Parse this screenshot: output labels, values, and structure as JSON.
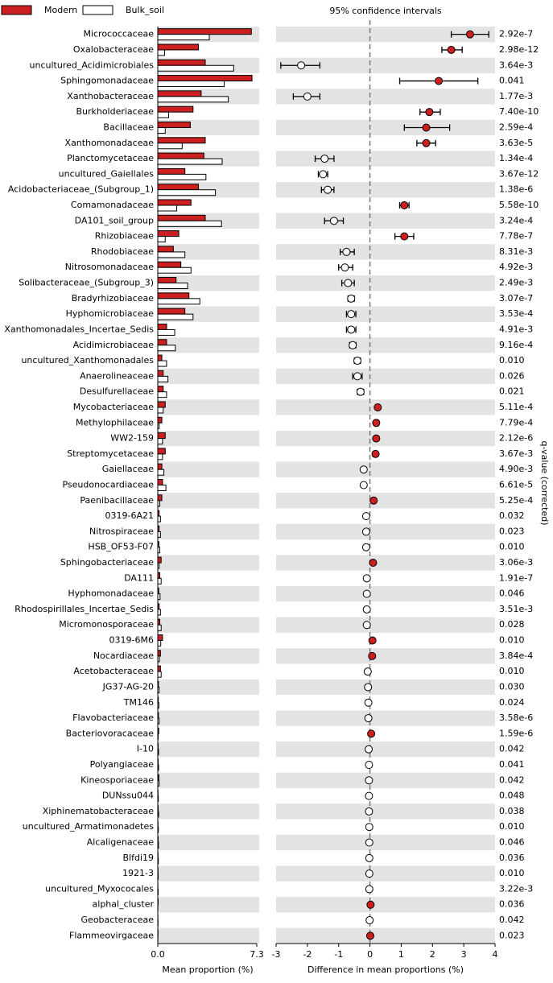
{
  "chart_data": {
    "type": "extended_error_bar",
    "title": "95% confidence intervals",
    "categories": [
      "Micrococcaceae",
      "Oxalobacteraceae",
      "uncultured_Acidimicrobiales",
      "Sphingomonadaceae",
      "Xanthobacteraceae",
      "Burkholderiaceae",
      "Bacillaceae",
      "Xanthomonadaceae",
      "Planctomycetaceae",
      "uncultured_Gaiellales",
      "Acidobacteriaceae_(Subgroup_1)",
      "Comamonadaceae",
      "DA101_soil_group",
      "Rhizobiaceae",
      "Rhodobiaceae",
      "Nitrosomonadaceae",
      "Solibacteraceae_(Subgroup_3)",
      "Bradyrhizobiaceae",
      "Hyphomicrobiaceae",
      "Xanthomonadales_Incertae_Sedis",
      "Acidimicrobiaceae",
      "uncultured_Xanthomonadales",
      "Anaerolineaceae",
      "Desulfurellaceae",
      "Mycobacteriaceae",
      "Methylophilaceae",
      "WW2-159",
      "Streptomycetaceae",
      "Gaiellaceae",
      "Pseudonocardiaceae",
      "Paenibacillaceae",
      "0319-6A21",
      "Nitrospiraceae",
      "HSB_OF53-F07",
      "Sphingobacteriaceae",
      "DA111",
      "Hyphomonadaceae",
      "Rhodospirillales_Incertae_Sedis",
      "Micromonosporaceae",
      "0319-6M6",
      "Nocardiaceae",
      "Acetobacteraceae",
      "JG37-AG-20",
      "TM146",
      "Flavobacteriaceae",
      "Bacteriovoracaceae",
      "I-10",
      "Polyangiaceae",
      "Kineosporiaceae",
      "DUNssu044",
      "Xiphinematobacteraceae",
      "uncultured_Armatimonadetes",
      "Alcaligenaceae",
      "Blfdi19",
      "1921-3",
      "uncultured_Myxococales",
      "alphal_cluster",
      "Geobacteraceae",
      "Flammeovirgaceae"
    ],
    "series": [
      {
        "name": "Modern",
        "color": "#cc1f1f",
        "values": [
          6.9,
          3.0,
          3.5,
          6.95,
          3.2,
          2.6,
          2.4,
          3.5,
          3.4,
          2.0,
          3.0,
          2.45,
          3.5,
          1.55,
          1.15,
          1.7,
          1.35,
          2.3,
          2.0,
          0.65,
          0.65,
          0.3,
          0.4,
          0.4,
          0.55,
          0.3,
          0.55,
          0.55,
          0.3,
          0.35,
          0.3,
          0.1,
          0.1,
          0.08,
          0.25,
          0.15,
          0.07,
          0.1,
          0.15,
          0.35,
          0.2,
          0.2,
          0.05,
          0.04,
          0.05,
          0.07,
          0.03,
          0.03,
          0.08,
          0.02,
          0.03,
          0.02,
          0.03,
          0.02,
          0.02,
          0.01,
          0.03,
          0.01,
          0.02
        ]
      },
      {
        "name": "Bulk_soil",
        "color": "#ffffff",
        "values": [
          3.8,
          0.5,
          5.6,
          4.9,
          5.2,
          0.8,
          0.55,
          1.8,
          4.75,
          3.55,
          4.25,
          1.4,
          4.7,
          0.55,
          2.0,
          2.45,
          2.2,
          3.1,
          2.6,
          1.25,
          1.3,
          0.65,
          0.75,
          0.65,
          0.4,
          0.1,
          0.35,
          0.35,
          0.45,
          0.6,
          0.15,
          0.2,
          0.2,
          0.15,
          0.1,
          0.25,
          0.17,
          0.2,
          0.25,
          0.22,
          0.12,
          0.25,
          0.1,
          0.08,
          0.1,
          0.03,
          0.06,
          0.06,
          0.1,
          0.04,
          0.06,
          0.04,
          0.05,
          0.04,
          0.03,
          0.03,
          0.01,
          0.02,
          0.01
        ]
      }
    ],
    "difference": [
      3.2,
      2.6,
      -2.2,
      2.2,
      -2.0,
      1.9,
      1.8,
      1.8,
      -1.45,
      -1.5,
      -1.35,
      1.1,
      -1.15,
      1.1,
      -0.75,
      -0.8,
      -0.7,
      -0.6,
      -0.6,
      -0.6,
      -0.55,
      -0.4,
      -0.4,
      -0.3,
      0.25,
      0.2,
      0.2,
      0.18,
      -0.2,
      -0.2,
      0.12,
      -0.12,
      -0.12,
      -0.12,
      0.1,
      -0.1,
      -0.1,
      -0.1,
      -0.1,
      0.08,
      0.07,
      -0.07,
      -0.06,
      -0.05,
      -0.05,
      0.04,
      -0.04,
      -0.03,
      -0.03,
      -0.03,
      -0.03,
      -0.02,
      -0.02,
      -0.02,
      -0.02,
      -0.02,
      0.02,
      -0.01,
      0.01
    ],
    "ci_low": [
      2.6,
      2.3,
      -2.85,
      0.95,
      -2.45,
      1.6,
      1.1,
      1.5,
      -1.75,
      -1.65,
      -1.55,
      0.95,
      -1.45,
      0.8,
      -0.95,
      -1.0,
      -0.9,
      -0.7,
      -0.75,
      -0.75,
      -0.65,
      -0.5,
      -0.55,
      -0.4,
      0.2,
      0.15,
      0.15,
      0.1,
      -0.25,
      -0.25,
      0.08,
      -0.15,
      -0.15,
      -0.15,
      0.07,
      -0.13,
      -0.13,
      -0.13,
      -0.13,
      0.05,
      0.04,
      -0.1,
      -0.08,
      -0.07,
      -0.07,
      0.02,
      -0.06,
      -0.05,
      -0.05,
      -0.05,
      -0.05,
      -0.04,
      -0.04,
      -0.04,
      -0.04,
      -0.04,
      0.0,
      -0.02,
      0.0
    ],
    "ci_high": [
      3.8,
      2.95,
      -1.6,
      3.45,
      -1.6,
      2.25,
      2.55,
      2.1,
      -1.15,
      -1.35,
      -1.15,
      1.25,
      -0.85,
      1.4,
      -0.5,
      -0.55,
      -0.5,
      -0.5,
      -0.45,
      -0.45,
      -0.45,
      -0.3,
      -0.25,
      -0.2,
      0.3,
      0.28,
      0.25,
      0.25,
      -0.15,
      -0.15,
      0.16,
      -0.09,
      -0.09,
      -0.09,
      0.13,
      -0.07,
      -0.07,
      -0.07,
      -0.07,
      0.11,
      0.1,
      -0.04,
      -0.04,
      -0.03,
      -0.03,
      0.06,
      -0.02,
      -0.01,
      -0.01,
      -0.01,
      -0.01,
      0.0,
      0.0,
      0.0,
      0.0,
      0.0,
      0.04,
      0.0,
      0.02
    ],
    "q_values": [
      "2.92e-7",
      "2.98e-12",
      "3.64e-3",
      "0.041",
      "1.77e-3",
      "7.40e-10",
      "2.59e-4",
      "3.63e-5",
      "1.34e-4",
      "3.67e-12",
      "1.38e-6",
      "5.58e-10",
      "3.24e-4",
      "7.78e-7",
      "8.31e-3",
      "4.92e-3",
      "2.49e-3",
      "3.07e-7",
      "3.53e-4",
      "4.91e-3",
      "9.16e-4",
      "0.010",
      "0.026",
      "0.021",
      "5.11e-4",
      "7.79e-4",
      "2.12e-6",
      "3.67e-3",
      "4.90e-3",
      "6.61e-5",
      "5.25e-4",
      "0.032",
      "0.023",
      "0.010",
      "3.06e-3",
      "1.91e-7",
      "0.046",
      "3.51e-3",
      "0.028",
      "0.010",
      "3.84e-4",
      "0.010",
      "0.030",
      "0.024",
      "3.58e-6",
      "1.59e-6",
      "0.042",
      "0.041",
      "0.042",
      "0.048",
      "0.038",
      "0.010",
      "0.046",
      "0.036",
      "0.010",
      "3.22e-3",
      "0.036",
      "0.042",
      "0.023"
    ],
    "q_label": "q-value (corrected)",
    "xlabel": "Mean proportion (%)",
    "xlim": [
      0,
      7.3
    ],
    "xticks": [
      {
        "value": 0,
        "label": "0.0"
      },
      7.3
    ],
    "diff_xlabel": "Difference in mean proportions (%)",
    "diff_xlim": [
      -3,
      4
    ],
    "diff_xticks": [
      -3,
      -2,
      -1,
      0,
      1,
      2,
      3,
      4
    ]
  }
}
